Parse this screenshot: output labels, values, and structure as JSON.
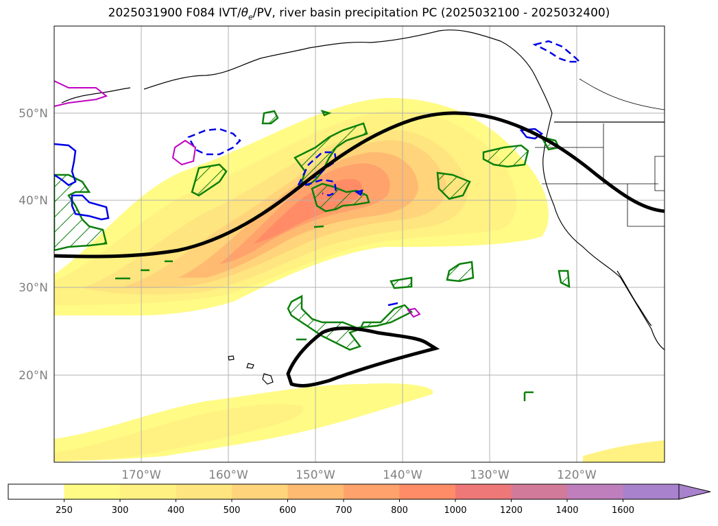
{
  "title": "2025031900 F084 IVT/θe/PV, river basin precipitation PC (2025032100 - 2025032400)",
  "title_parts": {
    "prefix": "2025031900 F084 IVT/",
    "theta": "θ",
    "sub": "e",
    "suffix": "/PV, river basin precipitation PC (2025032100 - 2025032400)"
  },
  "map": {
    "lon_range": [
      180,
      250
    ],
    "lat_range": [
      10,
      60
    ],
    "lat_labels": [
      "20°N",
      "30°N",
      "40°N",
      "50°N"
    ],
    "lon_labels": [
      "170°W",
      "160°W",
      "150°W",
      "140°W",
      "130°W",
      "120°W"
    ],
    "grid": true,
    "coastline_color": "#000000"
  },
  "colorbar": {
    "ticks": [
      "250",
      "300",
      "400",
      "500",
      "600",
      "700",
      "800",
      "1000",
      "1200",
      "1400",
      "1600"
    ],
    "colors": [
      "#ffffff",
      "#fffb85",
      "#fff282",
      "#ffe57f",
      "#ffd47a",
      "#ffba72",
      "#ffa26b",
      "#ff8c66",
      "#ee7878",
      "#d27a99",
      "#bf7fbd",
      "#a882cc"
    ],
    "extend": "max"
  },
  "legend_colors": {
    "pv_contour": "#000000",
    "green_hatched": "#0a7f0a",
    "blue": "#0000e6",
    "magenta": "#c000c0"
  }
}
